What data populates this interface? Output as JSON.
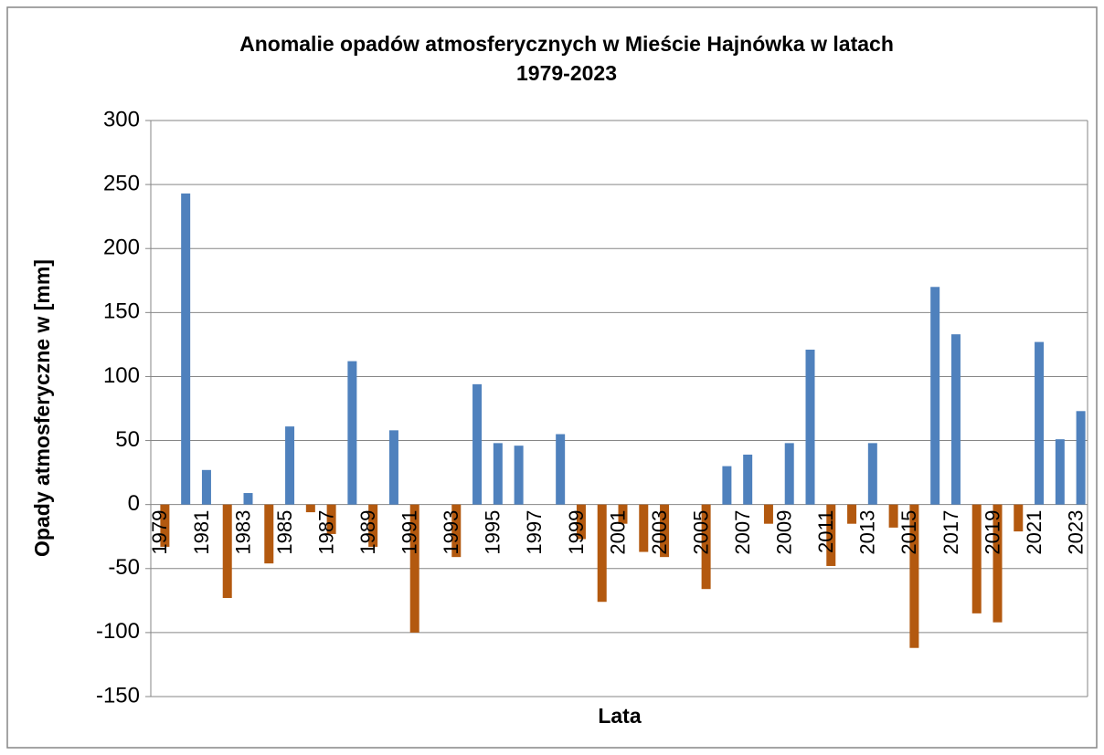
{
  "chart_data": {
    "type": "bar",
    "title": [
      "Anomalie opadów atmosferycznych w Mieście Hajnówka w latach",
      "1979-2023"
    ],
    "x_label": "Lata",
    "y_label": "Opady atmosferyczne w [mm]",
    "categories": [
      "1979",
      null,
      "1981",
      null,
      "1983",
      null,
      "1985",
      null,
      "1987",
      null,
      "1989",
      null,
      "1991",
      null,
      "1993",
      null,
      "1995",
      null,
      "1997",
      null,
      "1999",
      null,
      "2001",
      null,
      "2003",
      null,
      "2005",
      null,
      "2007",
      null,
      "2009",
      null,
      "2011",
      null,
      "2013",
      null,
      "2015",
      null,
      "2017",
      null,
      "2019",
      null,
      "2021",
      null,
      "2023"
    ],
    "values": [
      -33,
      243,
      27,
      -73,
      9,
      -46,
      61,
      -6,
      -23,
      112,
      -33,
      58,
      -100,
      0,
      -41,
      94,
      48,
      46,
      0,
      55,
      -27,
      -76,
      -15,
      -37,
      -41,
      0,
      -66,
      30,
      39,
      -15,
      48,
      121,
      -48,
      -15,
      48,
      -18,
      -112,
      170,
      133,
      -85,
      -92,
      -21,
      127,
      51,
      73
    ],
    "color": "#4f81bd",
    "negative_color": "#b3590f",
    "ylim": [
      -150,
      300
    ],
    "yticks": [
      -150,
      -100,
      -50,
      0,
      50,
      100,
      150,
      200,
      250,
      300
    ],
    "grid": true
  }
}
